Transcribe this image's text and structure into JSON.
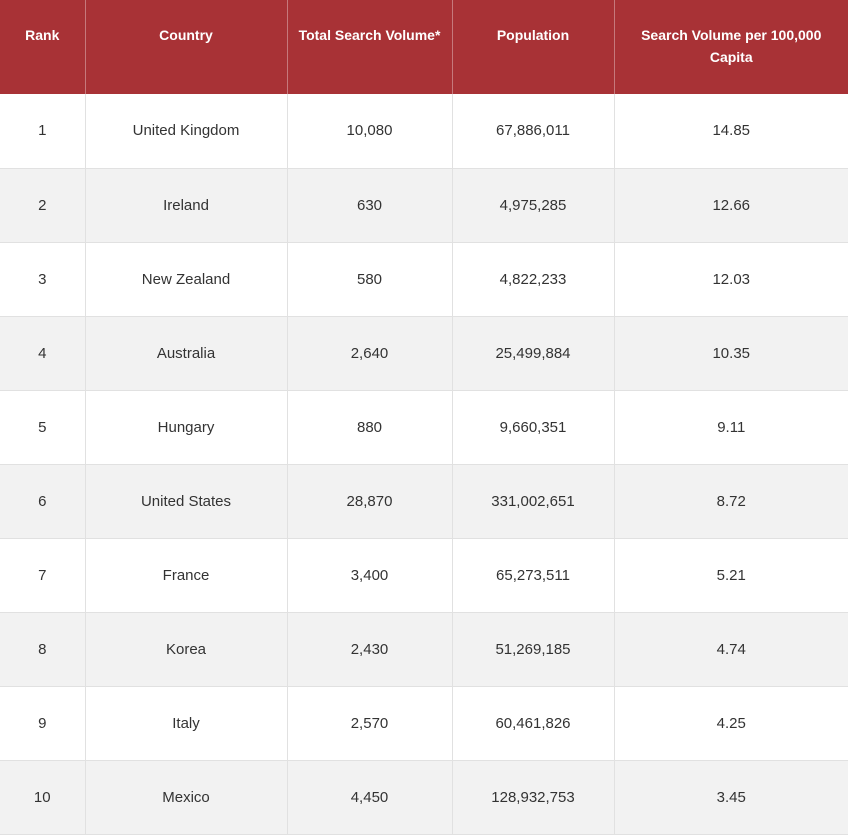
{
  "table": {
    "headers": [
      "Rank",
      "Country",
      "Total Search Volume*",
      "Population",
      "Search Volume per 100,000 Capita"
    ],
    "rows": [
      [
        "1",
        "United Kingdom",
        "10,080",
        "67,886,011",
        "14.85"
      ],
      [
        "2",
        "Ireland",
        "630",
        "4,975,285",
        "12.66"
      ],
      [
        "3",
        "New Zealand",
        "580",
        "4,822,233",
        "12.03"
      ],
      [
        "4",
        "Australia",
        "2,640",
        "25,499,884",
        "10.35"
      ],
      [
        "5",
        "Hungary",
        "880",
        "9,660,351",
        "9.11"
      ],
      [
        "6",
        "United States",
        "28,870",
        "331,002,651",
        "8.72"
      ],
      [
        "7",
        "France",
        "3,400",
        "65,273,511",
        "5.21"
      ],
      [
        "8",
        "Korea",
        "2,430",
        "51,269,185",
        "4.74"
      ],
      [
        "9",
        "Italy",
        "2,570",
        "60,461,826",
        "4.25"
      ],
      [
        "10",
        "Mexico",
        "4,450",
        "128,932,753",
        "3.45"
      ]
    ]
  },
  "colors": {
    "header_bg": "#a83236",
    "header_text": "#ffffff",
    "row_alt": "#f2f2f2"
  }
}
